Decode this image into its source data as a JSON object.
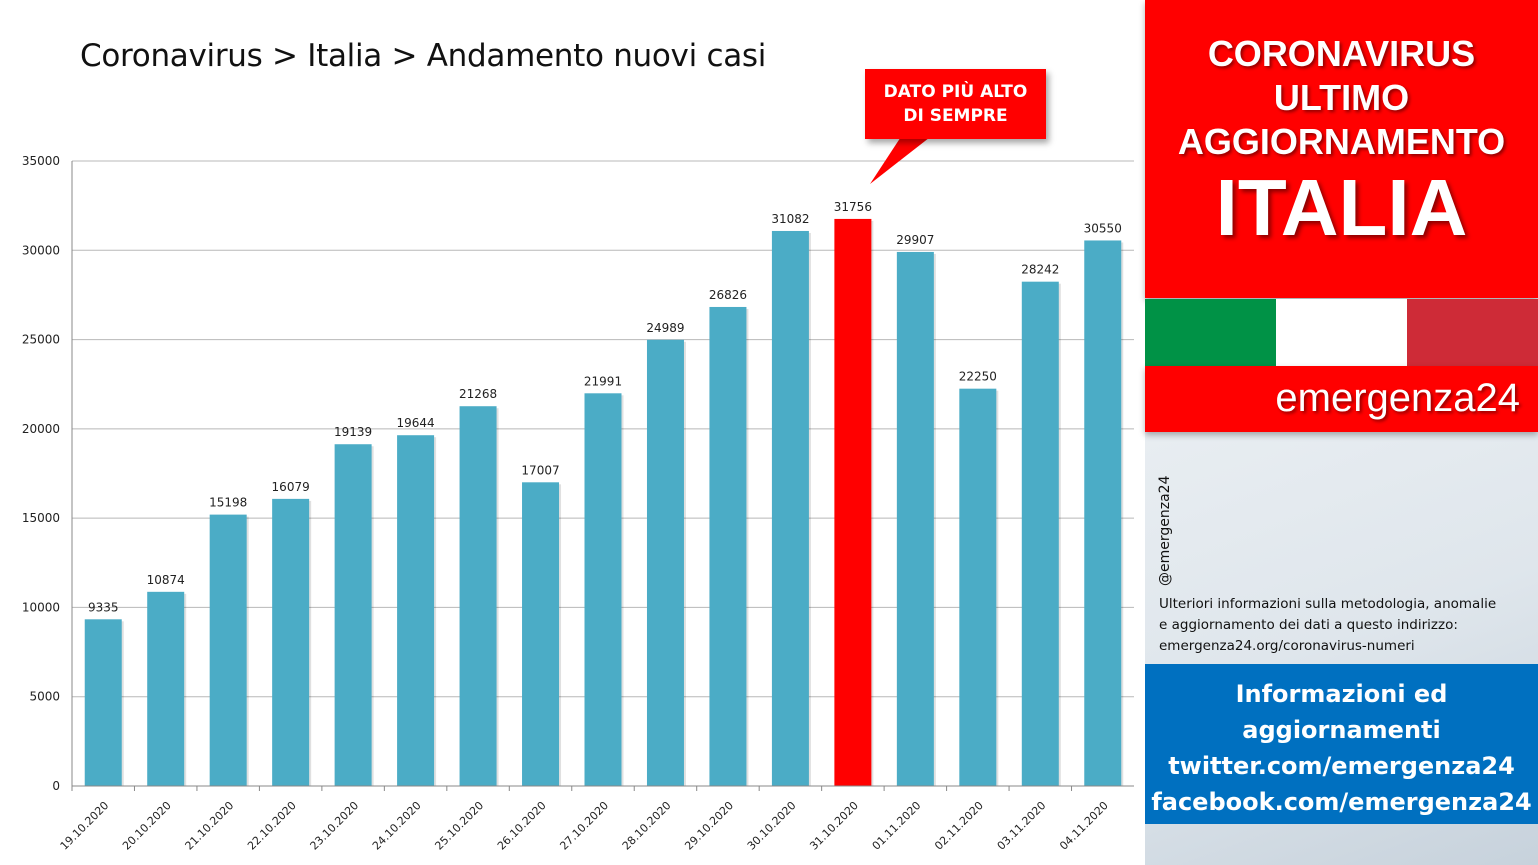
{
  "header": {
    "title": "Coronavirus > Italia > Andamento nuovi casi"
  },
  "callout": {
    "line1": "DATO PIÙ ALTO",
    "line2": "DI SEMPRE"
  },
  "chart_data": {
    "type": "bar",
    "title": "Coronavirus > Italia > Andamento nuovi casi",
    "categories": [
      "19.10.2020",
      "20.10.2020",
      "21.10.2020",
      "22.10.2020",
      "23.10.2020",
      "24.10.2020",
      "25.10.2020",
      "26.10.2020",
      "27.10.2020",
      "28.10.2020",
      "29.10.2020",
      "30.10.2020",
      "31.10.2020",
      "01.11.2020",
      "02.11.2020",
      "03.11.2020",
      "04.11.2020"
    ],
    "values": [
      9335,
      10874,
      15198,
      16079,
      19139,
      19644,
      21268,
      17007,
      21991,
      24989,
      26826,
      31082,
      31756,
      29907,
      22250,
      28242,
      30550
    ],
    "highlight_index": 12,
    "ylim": [
      0,
      35000
    ],
    "yticks": [
      0,
      5000,
      10000,
      15000,
      20000,
      25000,
      30000,
      35000
    ],
    "grid": true,
    "legend": "none",
    "colors": {
      "bar": "#4bacc6",
      "highlight": "#ff0000",
      "grid": "#b8b8b8"
    }
  },
  "sidebar": {
    "headline": [
      "CORONAVIRUS",
      "ULTIMO",
      "AGGIORNAMENTO"
    ],
    "country": "ITALIA",
    "flag_colors": [
      "#009246",
      "#ffffff",
      "#ce2b37"
    ],
    "brand": "emergenza24",
    "handle": "@emergenza24",
    "info": [
      "Ulteriori informazioni sulla metodologia, anomalie",
      "e aggiornamento dei dati a questo indirizzo:",
      "emergenza24.org/coronavirus-numeri"
    ],
    "links": [
      "Informazioni ed",
      "aggiornamenti",
      "twitter.com/emergenza24",
      "facebook.com/emergenza24"
    ],
    "colors": {
      "red": "#ff0000",
      "blue": "#0070c0"
    }
  }
}
